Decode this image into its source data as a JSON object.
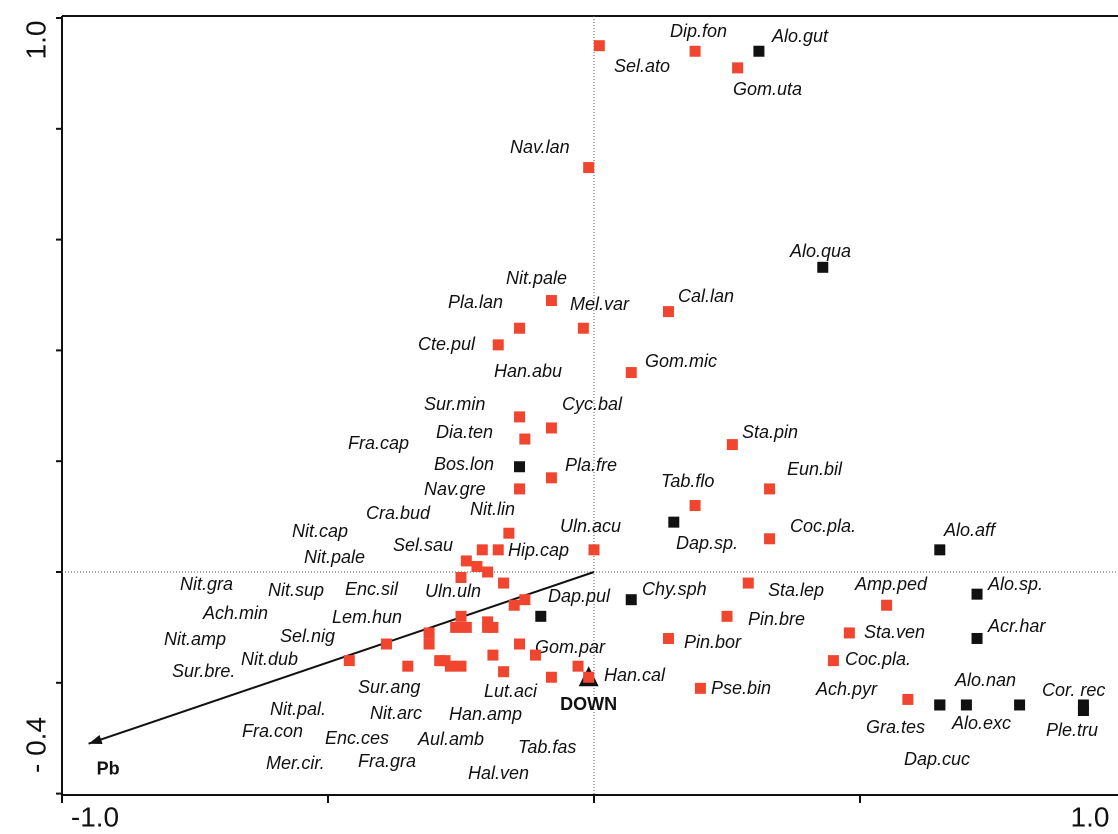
{
  "chart_data": {
    "type": "scatter",
    "xlim": [
      -1.0,
      1.0
    ],
    "ylim": [
      -0.4,
      1.0
    ],
    "xticks": [
      {
        "value": -1.0,
        "label": "-1.0"
      },
      {
        "value": 1.0,
        "label": "1.0"
      }
    ],
    "yticks": [
      {
        "value": 1.0,
        "label": "1.0"
      },
      {
        "value": -0.4,
        "label": "- 0.4"
      }
    ],
    "xminorticks": [
      -0.5,
      0,
      0.5
    ],
    "yminorticks": [
      0.8,
      0.6,
      0.4,
      0.2,
      0,
      -0.2
    ],
    "reference_lines": {
      "x": 0,
      "y": 0
    },
    "points": [
      {
        "name": "Sel.ato",
        "x": 0.01,
        "y": 0.95,
        "color": "#f04630"
      },
      {
        "name": "Dip.fon",
        "x": 0.19,
        "y": 0.94,
        "color": "#f04630"
      },
      {
        "name": "Alo.gut",
        "x": 0.31,
        "y": 0.94,
        "color": "#111111"
      },
      {
        "name": "Gom.uta",
        "x": 0.27,
        "y": 0.91,
        "color": "#f04630"
      },
      {
        "name": "Nav.lan",
        "x": -0.01,
        "y": 0.73,
        "color": "#f04630"
      },
      {
        "name": "Alo.qua",
        "x": 0.43,
        "y": 0.55,
        "color": "#111111"
      },
      {
        "name": "Nit.pale",
        "x": -0.08,
        "y": 0.49,
        "color": "#f04630"
      },
      {
        "name": "Pla.lan",
        "x": -0.14,
        "y": 0.44,
        "color": "#f04630"
      },
      {
        "name": "Mel.var",
        "x": -0.02,
        "y": 0.44,
        "color": "#f04630"
      },
      {
        "name": "Cal.lan",
        "x": 0.14,
        "y": 0.47,
        "color": "#f04630"
      },
      {
        "name": "Cte.pul",
        "x": -0.18,
        "y": 0.41,
        "color": "#f04630"
      },
      {
        "name": "Gom.mic",
        "x": 0.07,
        "y": 0.36,
        "color": "#f04630"
      },
      {
        "name": "Han.abu",
        "x": -0.25,
        "y": -0.01,
        "color": "#f04630"
      },
      {
        "name": "Sur.min",
        "x": -0.14,
        "y": 0.28,
        "color": "#f04630"
      },
      {
        "name": "Cyc.bal",
        "x": -0.08,
        "y": 0.26,
        "color": "#f04630"
      },
      {
        "name": "Dia.ten",
        "x": -0.13,
        "y": 0.24,
        "color": "#f04630"
      },
      {
        "name": "Fra.cap",
        "x": -0.24,
        "y": 0.02,
        "color": "#f04630"
      },
      {
        "name": "Sta.pin",
        "x": 0.26,
        "y": 0.23,
        "color": "#f04630"
      },
      {
        "name": "Bos.lon",
        "x": -0.14,
        "y": 0.19,
        "color": "#111111"
      },
      {
        "name": "Pla.fre",
        "x": -0.08,
        "y": 0.17,
        "color": "#f04630"
      },
      {
        "name": "Nav.gre",
        "x": -0.14,
        "y": 0.15,
        "color": "#f04630"
      },
      {
        "name": "Eun.bil",
        "x": 0.33,
        "y": 0.15,
        "color": "#f04630"
      },
      {
        "name": "Tab.flo",
        "x": 0.19,
        "y": 0.12,
        "color": "#f04630"
      },
      {
        "name": "Cra.bud",
        "x": -0.21,
        "y": 0.04,
        "color": "#f04630"
      },
      {
        "name": "Nit.lin",
        "x": -0.16,
        "y": 0.07,
        "color": "#f04630"
      },
      {
        "name": "Nit.cap",
        "x": -0.22,
        "y": 0.01,
        "color": "#f04630"
      },
      {
        "name": "Coc.pla.",
        "x": 0.33,
        "y": 0.06,
        "color": "#f04630"
      },
      {
        "name": "Dap.sp.",
        "x": 0.15,
        "y": 0.09,
        "color": "#111111"
      },
      {
        "name": "Uln.acu",
        "x": 0.0,
        "y": 0.04,
        "color": "#f04630"
      },
      {
        "name": "Sel.sau",
        "x": -0.2,
        "y": 0.0,
        "color": "#f04630"
      },
      {
        "name": "Hip.cap",
        "x": -0.18,
        "y": 0.04,
        "color": "#f04630"
      },
      {
        "name": "Nit.pale",
        "x": -0.17,
        "y": -0.02,
        "color": "#f04630"
      },
      {
        "name": "Alo.aff",
        "x": 0.65,
        "y": 0.04,
        "color": "#111111"
      },
      {
        "name": "Nit.gra",
        "x": -0.25,
        "y": -0.08,
        "color": "#f04630"
      },
      {
        "name": "Nit.sup",
        "x": -0.26,
        "y": -0.1,
        "color": "#f04630"
      },
      {
        "name": "Enc.sil",
        "x": -0.24,
        "y": -0.1,
        "color": "#f04630"
      },
      {
        "name": "Uln.uln",
        "x": -0.2,
        "y": -0.09,
        "color": "#f04630"
      },
      {
        "name": "Chy.sph",
        "x": 0.07,
        "y": -0.05,
        "color": "#111111"
      },
      {
        "name": "Dap.pul",
        "x": -0.1,
        "y": -0.08,
        "color": "#111111"
      },
      {
        "name": "Sta.lep",
        "x": 0.29,
        "y": -0.02,
        "color": "#f04630"
      },
      {
        "name": "Amp.ped",
        "x": 0.55,
        "y": -0.06,
        "color": "#f04630"
      },
      {
        "name": "Alo.sp.",
        "x": 0.72,
        "y": -0.04,
        "color": "#111111"
      },
      {
        "name": "Ach.min",
        "x": -0.31,
        "y": -0.11,
        "color": "#f04630"
      },
      {
        "name": "Lem.hun",
        "x": -0.31,
        "y": -0.13,
        "color": "#f04630"
      },
      {
        "name": "Pin.bre",
        "x": 0.25,
        "y": -0.08,
        "color": "#f04630"
      },
      {
        "name": "Acr.har",
        "x": 0.72,
        "y": -0.12,
        "color": "#111111"
      },
      {
        "name": "Nit.amp",
        "x": -0.39,
        "y": -0.13,
        "color": "#f04630"
      },
      {
        "name": "Sel.nig",
        "x": -0.35,
        "y": -0.17,
        "color": "#f04630"
      },
      {
        "name": "Sta.ven",
        "x": 0.48,
        "y": -0.11,
        "color": "#f04630"
      },
      {
        "name": "Pin.bor",
        "x": 0.14,
        "y": -0.12,
        "color": "#f04630"
      },
      {
        "name": "Gom.par",
        "x": -0.14,
        "y": -0.13,
        "color": "#f04630"
      },
      {
        "name": "Nit.dub",
        "x": -0.46,
        "y": -0.16,
        "color": "#f04630"
      },
      {
        "name": "Sur.bre.",
        "x": -0.29,
        "y": -0.16,
        "color": "#f04630"
      },
      {
        "name": "Coc.pla.",
        "x": 0.45,
        "y": -0.16,
        "color": "#f04630"
      },
      {
        "name": "Han.cal",
        "x": -0.03,
        "y": -0.17,
        "color": "#f04630"
      },
      {
        "name": "Sur.ang",
        "x": -0.27,
        "y": -0.17,
        "color": "#f04630"
      },
      {
        "name": "Lut.aci",
        "x": -0.17,
        "y": -0.18,
        "color": "#f04630"
      },
      {
        "name": "Pse.bin",
        "x": 0.2,
        "y": -0.21,
        "color": "#f04630"
      },
      {
        "name": "Alo.nan",
        "x": 0.7,
        "y": -0.24,
        "color": "#111111"
      },
      {
        "name": "Cor. rec",
        "x": 0.92,
        "y": -0.24,
        "color": "#111111"
      },
      {
        "name": "Ach.pyr",
        "x": 0.59,
        "y": -0.23,
        "color": "#f04630"
      },
      {
        "name": "Nit.pal.",
        "x": -0.25,
        "y": -0.17,
        "color": "#f04630"
      },
      {
        "name": "Nit.arc",
        "x": -0.19,
        "y": -0.15,
        "color": "#f04630"
      },
      {
        "name": "Han.amp",
        "x": -0.08,
        "y": -0.19,
        "color": "#f04630"
      },
      {
        "name": "Alo.exc",
        "x": 0.8,
        "y": -0.24,
        "color": "#111111"
      },
      {
        "name": "Gra.tes",
        "x": 0.65,
        "y": -0.24,
        "color": "#111111"
      },
      {
        "name": "Ple.tru",
        "x": 0.92,
        "y": -0.25,
        "color": "#111111"
      },
      {
        "name": "Fra.con",
        "x": -0.19,
        "y": -0.1,
        "color": "#f04630"
      },
      {
        "name": "Enc.ces",
        "x": -0.13,
        "y": -0.05,
        "color": "#f04630"
      },
      {
        "name": "Aul.amb",
        "x": -0.15,
        "y": -0.06,
        "color": "#f04630"
      },
      {
        "name": "Tab.fas",
        "x": -0.01,
        "y": -0.19,
        "color": "#f04630"
      },
      {
        "name": "Dap.cuc",
        "x": 0.65,
        "y": -0.24,
        "color": "#111111"
      },
      {
        "name": "Mer.cir.",
        "x": -0.28,
        "y": -0.16,
        "color": "#f04630"
      },
      {
        "name": "Fra.gra",
        "x": -0.2,
        "y": -0.1,
        "color": "#f04630"
      },
      {
        "name": "Hal.ven",
        "x": -0.11,
        "y": -0.15,
        "color": "#f04630"
      }
    ],
    "env_vars": [
      {
        "name": "Pb",
        "x": -0.95,
        "y": -0.31,
        "kind": "arrow"
      },
      {
        "name": "DOWN",
        "x": -0.01,
        "y": -0.19,
        "kind": "triangle"
      }
    ]
  }
}
